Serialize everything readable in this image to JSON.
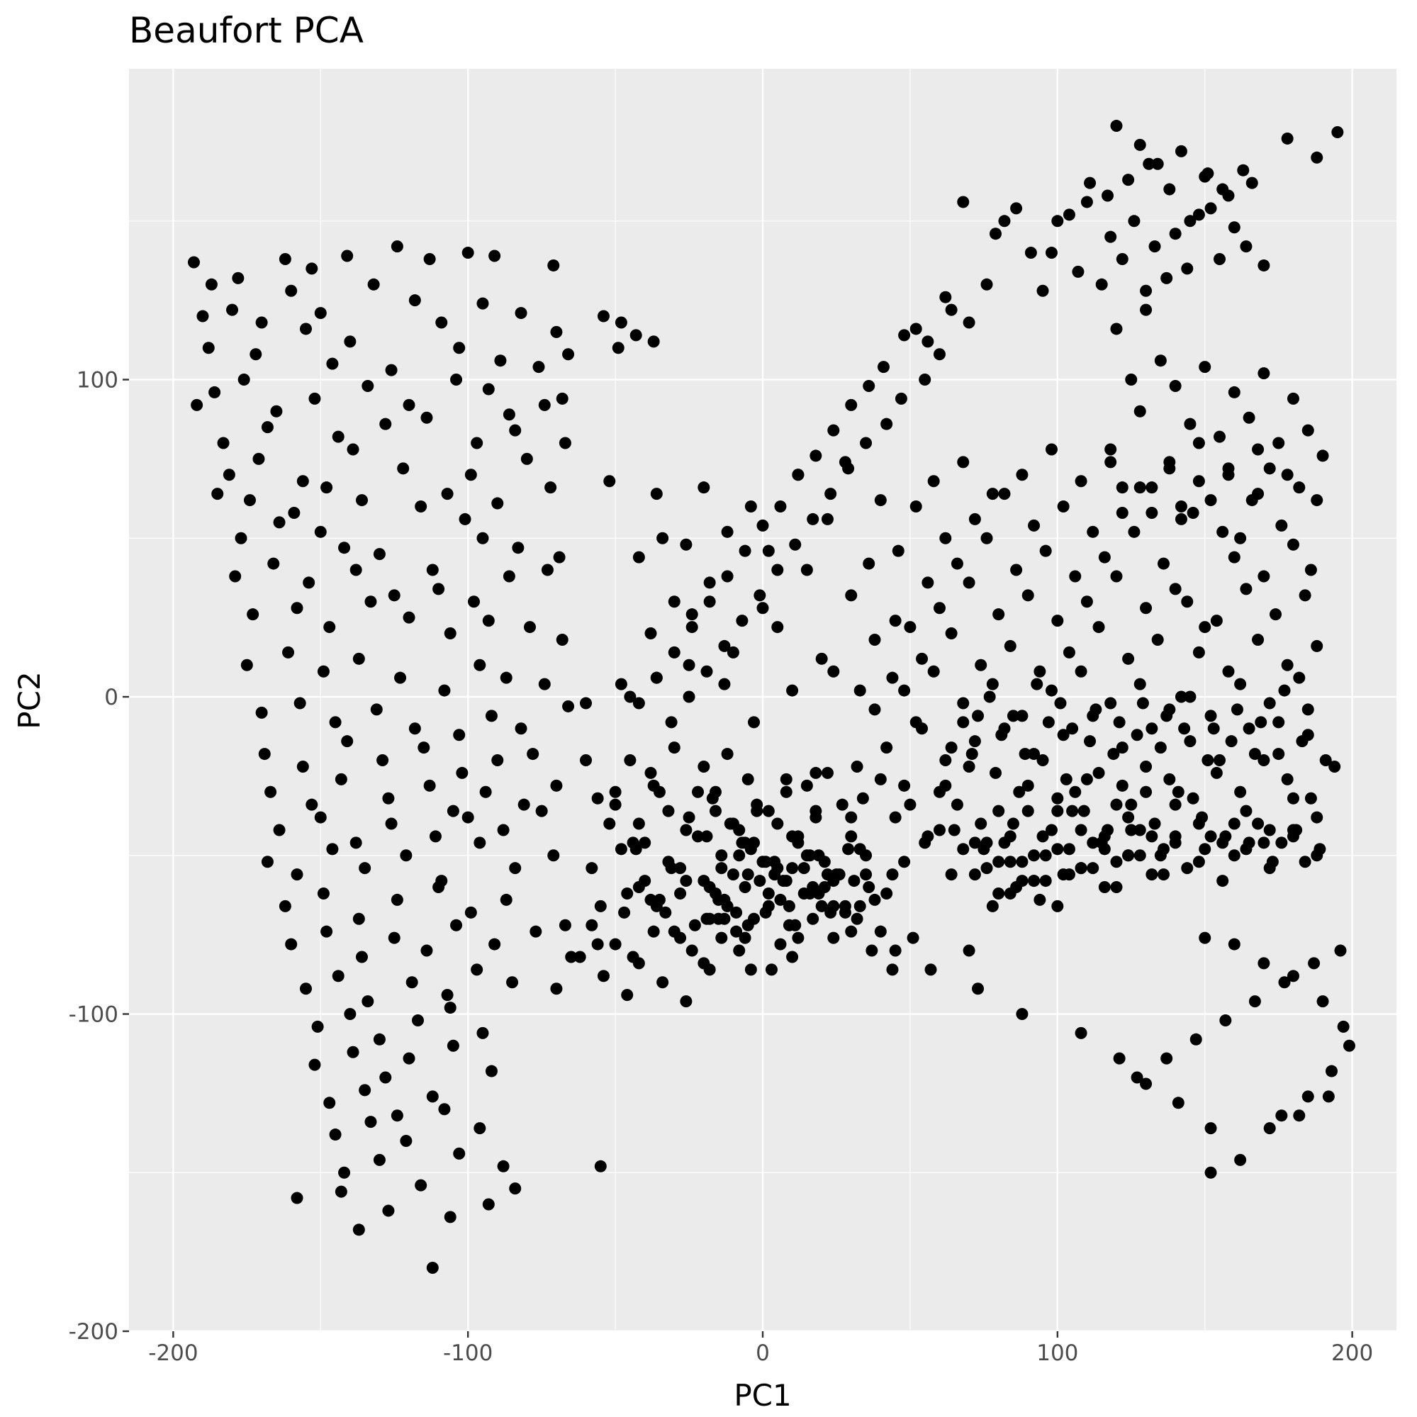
{
  "chart_data": {
    "type": "scatter",
    "title": "Beaufort PCA",
    "xlabel": "PC1",
    "ylabel": "PC2",
    "xlim": [
      -215,
      215
    ],
    "ylim": [
      -200,
      198
    ],
    "x_ticks": [
      -200,
      -100,
      0,
      100,
      200
    ],
    "y_ticks": [
      -200,
      -100,
      0,
      100
    ],
    "x_tick_labels": [
      "-200",
      "-100",
      "0",
      "100",
      "200"
    ],
    "y_tick_labels": [
      "-200",
      "-100",
      "0",
      "100"
    ],
    "grid": true,
    "legend": "none",
    "point_color": "#000000",
    "panel_background": "#ebebeb",
    "gridline_color": "#ffffff",
    "points_x": [
      -193,
      -187,
      -178,
      -162,
      -153,
      -141,
      -124,
      -113,
      -100,
      -91,
      -71,
      -190,
      -180,
      -170,
      -160,
      -150,
      -132,
      -118,
      -109,
      -95,
      -82,
      -70,
      -188,
      -172,
      -155,
      -140,
      -126,
      -103,
      -89,
      -76,
      -66,
      -186,
      -176,
      -165,
      -146,
      -134,
      -120,
      -104,
      -93,
      -86,
      -68,
      -192,
      -183,
      -168,
      -152,
      -144,
      -128,
      -114,
      -97,
      -84,
      -74,
      -181,
      -171,
      -156,
      -139,
      -122,
      -107,
      -99,
      -80,
      -67,
      -185,
      -174,
      -159,
      -148,
      -136,
      -116,
      -101,
      -90,
      -72,
      -177,
      -164,
      -150,
      -142,
      -130,
      -112,
      -95,
      -83,
      -69,
      -179,
      -166,
      -154,
      -138,
      -125,
      -110,
      -98,
      -86,
      -73,
      -173,
      -158,
      -147,
      -133,
      -120,
      -106,
      -93,
      -79,
      -68,
      -175,
      -161,
      -149,
      -137,
      -123,
      -108,
      -96,
      -87,
      -74,
      -170,
      -157,
      -145,
      -131,
      -118,
      -103,
      -92,
      -82,
      -66,
      -169,
      -156,
      -141,
      -129,
      -115,
      -102,
      -90,
      -78,
      -167,
      -153,
      -143,
      -127,
      -113,
      -105,
      -94,
      -81,
      -70,
      -164,
      -150,
      -138,
      -126,
      -111,
      -100,
      -88,
      -75,
      -168,
      -158,
      -146,
      -135,
      -121,
      -109,
      -96,
      -84,
      -71,
      -162,
      -149,
      -137,
      -124,
      -110,
      -99,
      -87,
      -160,
      -148,
      -136,
      -125,
      -114,
      -104,
      -91,
      -77,
      -155,
      -144,
      -134,
      -119,
      -107,
      -97,
      -85,
      -151,
      -140,
      -130,
      -117,
      -106,
      -95,
      -152,
      -139,
      -128,
      -120,
      -105,
      -92,
      -147,
      -135,
      -124,
      -112,
      -145,
      -133,
      -121,
      -108,
      -96,
      -142,
      -130,
      -116,
      -103,
      -88,
      -158,
      -127,
      -106,
      -143,
      -137,
      -112,
      -93,
      -84,
      -55,
      -45,
      -38,
      -30,
      -20,
      -12,
      -5,
      8,
      15,
      22,
      -60,
      -50,
      -42,
      -35,
      -25,
      -17,
      -8,
      2,
      10,
      18,
      27,
      -52,
      -44,
      -32,
      -22,
      -14,
      -4,
      5,
      12,
      21,
      30,
      -48,
      -40,
      -28,
      -18,
      -10,
      0,
      7,
      16,
      25,
      -58,
      -46,
      -36,
      -26,
      -15,
      -6,
      4,
      14,
      24,
      33,
      -42,
      -33,
      -23,
      -13,
      -3,
      9,
      19,
      28,
      -38,
      -28,
      -18,
      -9,
      1,
      11,
      20,
      -35,
      -24,
      -14,
      -5,
      6,
      17,
      -30,
      -20,
      -8,
      3,
      12,
      -44,
      -32,
      -22,
      -11,
      -2,
      8,
      18,
      -50,
      -37,
      -26,
      -16,
      -6,
      5,
      -56,
      -43,
      -31,
      -19,
      -8,
      -40,
      -28,
      -15,
      -55,
      -45,
      -36,
      -25,
      -13,
      -3,
      10,
      24,
      33,
      -60,
      -38,
      -24,
      -10,
      5,
      20,
      38,
      -48,
      -30,
      -18,
      0,
      15,
      30,
      45,
      -42,
      -26,
      -12,
      2,
      22,
      36,
      -34,
      -20,
      -4,
      12,
      28,
      40,
      -52,
      -36,
      -16,
      -2,
      18,
      34,
      48,
      30,
      40,
      50,
      60,
      70,
      80,
      90,
      100,
      110,
      120,
      130,
      140,
      150,
      160,
      170,
      180,
      35,
      45,
      55,
      65,
      75,
      85,
      95,
      105,
      115,
      125,
      135,
      145,
      155,
      165,
      175,
      185,
      32,
      42,
      52,
      62,
      72,
      82,
      92,
      102,
      112,
      122,
      132,
      142,
      152,
      162,
      172,
      182,
      38,
      48,
      58,
      68,
      78,
      88,
      98,
      108,
      118,
      128,
      138,
      148,
      158,
      168,
      178,
      188,
      44,
      54,
      64,
      74,
      84,
      94,
      104,
      114,
      124,
      134,
      144,
      154,
      164,
      174,
      184,
      50,
      60,
      70,
      80,
      90,
      100,
      110,
      120,
      130,
      140,
      150,
      160,
      170,
      180,
      186,
      46,
      56,
      66,
      76,
      86,
      96,
      106,
      116,
      126,
      136,
      146,
      156,
      166,
      176,
      52,
      62,
      72,
      82,
      92,
      102,
      112,
      122,
      132,
      142,
      152,
      162,
      172,
      182,
      190,
      58,
      68,
      78,
      88,
      98,
      108,
      118,
      128,
      138,
      148,
      158,
      168,
      178,
      188,
      195,
      120,
      128,
      134,
      142,
      150,
      156,
      163,
      111,
      117,
      124,
      131,
      138,
      145,
      152,
      160,
      104,
      110,
      118,
      126,
      133,
      140,
      148,
      155,
      164,
      170,
      98,
      107,
      115,
      122,
      130,
      137,
      144,
      151,
      158,
      166,
      86,
      82,
      79,
      91,
      95,
      100,
      68,
      76,
      62,
      70,
      56,
      64,
      52,
      60,
      48,
      55,
      41,
      47,
      36,
      42,
      30,
      35,
      24,
      29,
      18,
      23,
      12,
      17,
      6,
      11,
      0,
      5,
      -6,
      -1,
      -12,
      -7,
      -18,
      -13,
      -24,
      -19,
      -30,
      -25,
      -36,
      -31,
      -42,
      -37,
      -48,
      -43,
      -54,
      -49,
      120,
      130,
      140,
      150,
      160,
      170,
      180,
      125,
      135,
      145,
      155,
      165,
      175,
      185,
      118,
      128,
      138,
      148,
      158,
      168,
      178,
      188,
      122,
      132,
      142,
      152,
      162,
      172,
      182,
      192,
      127,
      137,
      147,
      157,
      167,
      177,
      187,
      196,
      150,
      160,
      170,
      180,
      190,
      197,
      199,
      193,
      185,
      176,
      152,
      141,
      130,
      121,
      108,
      88,
      73,
      57,
      45,
      40,
      32,
      24,
      10,
      -4,
      -19,
      -37,
      -47,
      -56,
      -67,
      70,
      78,
      86,
      94,
      102,
      84,
      92,
      100,
      108,
      116,
      124,
      72,
      80,
      88,
      96,
      104,
      112,
      120,
      128,
      136,
      76,
      84,
      92,
      100,
      108,
      116,
      124,
      132,
      140,
      148,
      156,
      164,
      172,
      180,
      188,
      64,
      72,
      80,
      88,
      96,
      104,
      112,
      120,
      128,
      136,
      144,
      152,
      160,
      168,
      176,
      184,
      60,
      68,
      76,
      84,
      92,
      100,
      108,
      116,
      124,
      132,
      140,
      148,
      156,
      164,
      172,
      180,
      188,
      56,
      66,
      74,
      82,
      90,
      98,
      106,
      114,
      122,
      130,
      138,
      146,
      154,
      162,
      170,
      178,
      186,
      194,
      62,
      71,
      79,
      87,
      95,
      103,
      111,
      119,
      127,
      135,
      143,
      151,
      159,
      167,
      175,
      183,
      191,
      54,
      64,
      73,
      81,
      89,
      97,
      105,
      113,
      121,
      129,
      137,
      145,
      153,
      161,
      169,
      177,
      185,
      68,
      77,
      85,
      93,
      101,
      109,
      117,
      125,
      133,
      141,
      149,
      157,
      165,
      173,
      181,
      189,
      -10,
      -3,
      4,
      12,
      19,
      26,
      33,
      -14,
      -7,
      1,
      8,
      15,
      22,
      29,
      36,
      -12,
      -5,
      2,
      10,
      17,
      24,
      31,
      38,
      44,
      -16,
      -9,
      -1,
      6,
      14,
      21,
      28,
      35,
      42,
      48,
      -20,
      -13,
      -6,
      2,
      9,
      16,
      23,
      30,
      37,
      44,
      51,
      -65,
      -58,
      -50,
      -42,
      -34,
      -26,
      -18,
      -70,
      -62,
      -54,
      -46,
      -38,
      -30,
      -22,
      -73,
      -66,
      -57,
      -49,
      -41,
      -33,
      -25
    ],
    "points_y": [
      137,
      130,
      132,
      138,
      135,
      139,
      142,
      138,
      140,
      139,
      136,
      120,
      122,
      118,
      128,
      121,
      130,
      125,
      118,
      124,
      121,
      115,
      110,
      108,
      116,
      112,
      103,
      110,
      106,
      104,
      108,
      96,
      100,
      90,
      105,
      98,
      92,
      100,
      97,
      89,
      94,
      92,
      80,
      85,
      94,
      82,
      86,
      88,
      80,
      84,
      92,
      70,
      75,
      68,
      78,
      72,
      64,
      70,
      75,
      80,
      64,
      62,
      58,
      66,
      62,
      60,
      56,
      61,
      66,
      50,
      55,
      52,
      47,
      45,
      40,
      50,
      47,
      44,
      38,
      42,
      36,
      40,
      32,
      34,
      30,
      38,
      40,
      26,
      28,
      22,
      30,
      25,
      20,
      24,
      22,
      18,
      10,
      14,
      8,
      12,
      6,
      2,
      10,
      6,
      4,
      -5,
      -2,
      -8,
      -4,
      -10,
      -12,
      -6,
      -10,
      -3,
      -18,
      -22,
      -14,
      -20,
      -16,
      -24,
      -20,
      -18,
      -30,
      -34,
      -26,
      -32,
      -28,
      -36,
      -30,
      -34,
      -28,
      -42,
      -38,
      -46,
      -40,
      -44,
      -38,
      -42,
      -36,
      -52,
      -56,
      -48,
      -54,
      -50,
      -58,
      -46,
      -54,
      -50,
      -66,
      -62,
      -70,
      -64,
      -60,
      -68,
      -64,
      -78,
      -74,
      -82,
      -76,
      -80,
      -72,
      -78,
      -74,
      -92,
      -88,
      -96,
      -90,
      -94,
      -86,
      -90,
      -104,
      -100,
      -108,
      -102,
      -98,
      -106,
      -116,
      -112,
      -120,
      -114,
      -110,
      -118,
      -128,
      -124,
      -132,
      -126,
      -138,
      -134,
      -140,
      -130,
      -136,
      -150,
      -146,
      -154,
      -144,
      -148,
      -158,
      -162,
      -164,
      -156,
      -168,
      -180,
      -160,
      -155,
      -148,
      -20,
      -24,
      -16,
      -22,
      -18,
      -26,
      -30,
      -28,
      -24,
      -20,
      -34,
      -40,
      -30,
      -38,
      -32,
      -42,
      -36,
      -44,
      -38,
      -34,
      -40,
      -46,
      -52,
      -44,
      -50,
      -48,
      -54,
      -46,
      -52,
      -44,
      -48,
      -58,
      -54,
      -60,
      -56,
      -52,
      -58,
      -50,
      -56,
      -54,
      -62,
      -66,
      -58,
      -64,
      -60,
      -56,
      -62,
      -58,
      -66,
      -60,
      -68,
      -72,
      -64,
      -70,
      -66,
      -62,
      -68,
      -64,
      -76,
      -70,
      -74,
      -68,
      -72,
      -66,
      -64,
      -80,
      -76,
      -72,
      -78,
      -70,
      -74,
      -84,
      -80,
      -86,
      -76,
      -82,
      -36,
      -30,
      -40,
      -34,
      -26,
      -36,
      -30,
      -28,
      -42,
      -36,
      -46,
      -40,
      -32,
      -48,
      -54,
      -44,
      -50,
      -46,
      -62,
      -70,
      -66,
      0,
      6,
      10,
      4,
      -8,
      2,
      8,
      2,
      -2,
      20,
      26,
      14,
      22,
      12,
      18,
      4,
      30,
      36,
      28,
      40,
      32,
      24,
      44,
      48,
      52,
      46,
      56,
      42,
      50,
      66,
      60,
      70,
      74,
      62,
      68,
      64,
      -30,
      -36,
      -24,
      -32,
      -28,
      -38,
      -26,
      -34,
      -30,
      -22,
      -36,
      -28,
      -32,
      -26,
      -34,
      -30,
      -44,
      -48,
      -40,
      -46,
      -42,
      -50,
      -38,
      -46,
      -42,
      -48,
      -40,
      -44,
      -36,
      -46,
      -42,
      -50,
      -14,
      -20,
      -10,
      -18,
      -12,
      -22,
      -16,
      -8,
      -20,
      -14,
      -10,
      -18,
      -12,
      -6,
      -16,
      -10,
      0,
      -6,
      4,
      -2,
      6,
      -4,
      2,
      8,
      -2,
      4,
      -6,
      2,
      8,
      -2,
      4,
      -4,
      14,
      8,
      18,
      10,
      16,
      6,
      12,
      20,
      10,
      16,
      8,
      14,
      22,
      12,
      18,
      30,
      24,
      34,
      26,
      32,
      22,
      28,
      36,
      26,
      32,
      24,
      30,
      38,
      28,
      34,
      22,
      44,
      38,
      48,
      40,
      46,
      36,
      42,
      50,
      40,
      46,
      38,
      44,
      52,
      42,
      58,
      52,
      62,
      54,
      60,
      50,
      56,
      64,
      54,
      60,
      52,
      58,
      66,
      56,
      62,
      50,
      72,
      66,
      76,
      68,
      74,
      64,
      70,
      78,
      68,
      74,
      66,
      72,
      80,
      70,
      78,
      176,
      170,
      178,
      180,
      174,
      168,
      172,
      164,
      160,
      166,
      162,
      158,
      163,
      168,
      160,
      150,
      154,
      148,
      152,
      156,
      145,
      150,
      142,
      146,
      152,
      138,
      142,
      136,
      140,
      134,
      130,
      138,
      128,
      132,
      135,
      165,
      158,
      162,
      154,
      150,
      146,
      140,
      128,
      150,
      156,
      130,
      126,
      118,
      112,
      122,
      116,
      108,
      114,
      100,
      104,
      94,
      98,
      86,
      92,
      80,
      84,
      72,
      76,
      64,
      70,
      56,
      60,
      48,
      54,
      40,
      46,
      32,
      38,
      24,
      30,
      16,
      22,
      8,
      14,
      0,
      6,
      -8,
      -2,
      112,
      118,
      114,
      120,
      110,
      116,
      122,
      98,
      104,
      96,
      102,
      94,
      100,
      106,
      86,
      82,
      88,
      80,
      84,
      78,
      90,
      74,
      68,
      72,
      64,
      70,
      62,
      66,
      58,
      60,
      -150,
      -146,
      -136,
      -132,
      -126,
      -120,
      -114,
      -108,
      -102,
      -96,
      -90,
      -84,
      -80,
      -76,
      -78,
      -84,
      -88,
      -96,
      -104,
      -110,
      -118,
      -126,
      -132,
      -136,
      -128,
      -122,
      -114,
      -106,
      -100,
      -92,
      -86,
      -80,
      -74,
      -70,
      -76,
      -82,
      -86,
      -70,
      -74,
      -68,
      -78,
      -72,
      -80,
      -66,
      -60,
      -64,
      -56,
      -62,
      -58,
      -66,
      -54,
      -60,
      -50,
      -56,
      -62,
      -52,
      -58,
      -48,
      -54,
      -60,
      -50,
      -56,
      -46,
      -52,
      -58,
      -48,
      -54,
      -44,
      -50,
      -56,
      -46,
      -52,
      -58,
      -48,
      -54,
      -44,
      -50,
      -56,
      -46,
      -52,
      -58,
      -50,
      -56,
      -46,
      -52,
      -42,
      -48,
      -54,
      -44,
      -50,
      -40,
      -46,
      -52,
      -42,
      -48,
      -54,
      -44,
      -50,
      -36,
      -42,
      -48,
      -38,
      -44,
      -34,
      -40,
      -46,
      -36,
      -42,
      -32,
      -38,
      -44,
      -34,
      -40,
      -46,
      -36,
      -42,
      -30,
      -24,
      -28,
      -22,
      -26,
      -32,
      -24,
      -30,
      -20,
      -26,
      -32,
      -22,
      -28,
      -18,
      -24,
      -30,
      -20,
      -26,
      -14,
      -18,
      -12,
      -16,
      -10,
      -20,
      -14,
      -18,
      -8,
      -14,
      -20,
      -10,
      -16,
      -6,
      -12,
      -18,
      -8,
      -10,
      -4,
      -8,
      -2,
      -6,
      0,
      -10,
      -4,
      -8,
      2,
      -4,
      -8,
      0,
      -6,
      4,
      -2,
      -36,
      -42,
      -34,
      -40,
      -30,
      -38,
      -44,
      -46,
      -52,
      -42,
      -48,
      -40,
      -46,
      -52,
      -44,
      -50,
      -56,
      -48,
      -54,
      -46,
      -52,
      -58,
      -50,
      -56,
      -48,
      -60,
      -66,
      -56,
      -62,
      -54,
      -60,
      -66,
      -58,
      -64,
      -56,
      -62,
      -68,
      -58,
      -64,
      -54,
      -60,
      -66,
      -56,
      -62,
      -52,
      -58,
      -70,
      -76,
      -66,
      -72,
      -62,
      -68,
      -74,
      -80,
      -86,
      -76,
      -82,
      -72,
      -78,
      -84,
      -90,
      -96,
      -86,
      -92,
      -82,
      -88,
      -94
    ]
  }
}
